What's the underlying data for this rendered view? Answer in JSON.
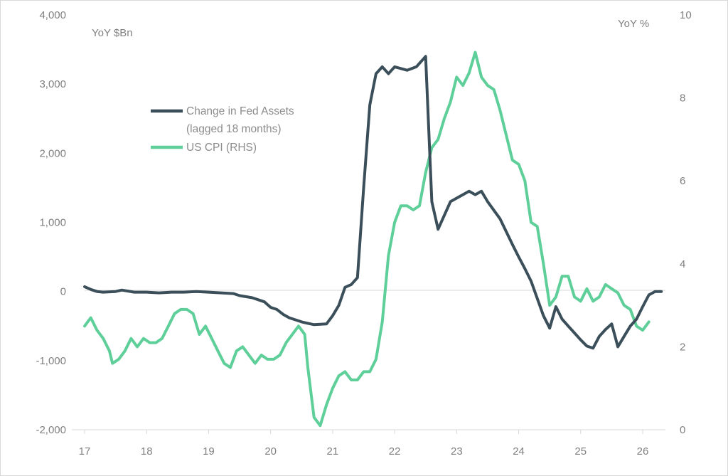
{
  "chart_data": {
    "type": "line",
    "y_left_unit": "YoY $Bn",
    "y_right_unit": "YoY %",
    "x_ticks": [
      "17",
      "18",
      "19",
      "20",
      "21",
      "22",
      "23",
      "24",
      "25",
      "26"
    ],
    "y_left_ticks": [
      "4,000",
      "3,000",
      "2,000",
      "1,000",
      "0",
      "-1,000",
      "-2,000"
    ],
    "y_right_ticks": [
      "10",
      "8",
      "6",
      "4",
      "2",
      "0"
    ],
    "xlim": [
      17,
      26.3
    ],
    "y_left_lim": [
      -2000,
      4000
    ],
    "y_right_lim": [
      0,
      10
    ],
    "grid": false,
    "legend_position": "upper-left",
    "legend": {
      "fed_line1": "Change in Fed Assets",
      "fed_line2": "(lagged 18 months)",
      "cpi": "US CPI (RHS)"
    },
    "colors": {
      "fed": "#3b4f5a",
      "cpi": "#5fcf9a",
      "axis": "#d9d9d9",
      "text": "#808080"
    },
    "series": [
      {
        "name": "Change in Fed Assets (lagged 18 months)",
        "axis": "left",
        "points": [
          [
            17.0,
            70
          ],
          [
            17.1,
            30
          ],
          [
            17.2,
            0
          ],
          [
            17.3,
            -10
          ],
          [
            17.5,
            0
          ],
          [
            17.6,
            20
          ],
          [
            17.8,
            -10
          ],
          [
            18.0,
            -10
          ],
          [
            18.2,
            -20
          ],
          [
            18.4,
            -10
          ],
          [
            18.6,
            -10
          ],
          [
            18.8,
            0
          ],
          [
            19.0,
            -10
          ],
          [
            19.2,
            -20
          ],
          [
            19.4,
            -30
          ],
          [
            19.5,
            -60
          ],
          [
            19.7,
            -90
          ],
          [
            19.9,
            -150
          ],
          [
            20.0,
            -230
          ],
          [
            20.1,
            -260
          ],
          [
            20.2,
            -330
          ],
          [
            20.3,
            -380
          ],
          [
            20.5,
            -440
          ],
          [
            20.6,
            -460
          ],
          [
            20.7,
            -480
          ],
          [
            20.9,
            -470
          ],
          [
            21.0,
            -350
          ],
          [
            21.1,
            -200
          ],
          [
            21.2,
            60
          ],
          [
            21.3,
            100
          ],
          [
            21.4,
            200
          ],
          [
            21.5,
            1500
          ],
          [
            21.6,
            2700
          ],
          [
            21.7,
            3150
          ],
          [
            21.8,
            3250
          ],
          [
            21.9,
            3150
          ],
          [
            22.0,
            3250
          ],
          [
            22.2,
            3200
          ],
          [
            22.35,
            3250
          ],
          [
            22.5,
            3400
          ],
          [
            22.6,
            1300
          ],
          [
            22.7,
            900
          ],
          [
            22.8,
            1100
          ],
          [
            22.9,
            1300
          ],
          [
            23.0,
            1350
          ],
          [
            23.1,
            1400
          ],
          [
            23.2,
            1450
          ],
          [
            23.3,
            1400
          ],
          [
            23.4,
            1450
          ],
          [
            23.5,
            1300
          ],
          [
            23.7,
            1050
          ],
          [
            23.9,
            680
          ],
          [
            24.0,
            500
          ],
          [
            24.1,
            330
          ],
          [
            24.2,
            150
          ],
          [
            24.3,
            -100
          ],
          [
            24.4,
            -350
          ],
          [
            24.5,
            -530
          ],
          [
            24.6,
            -220
          ],
          [
            24.7,
            -400
          ],
          [
            24.8,
            -500
          ],
          [
            24.9,
            -600
          ],
          [
            25.0,
            -700
          ],
          [
            25.1,
            -790
          ],
          [
            25.2,
            -820
          ],
          [
            25.3,
            -650
          ],
          [
            25.4,
            -550
          ],
          [
            25.5,
            -470
          ],
          [
            25.6,
            -800
          ],
          [
            25.7,
            -650
          ],
          [
            25.8,
            -500
          ],
          [
            25.9,
            -400
          ],
          [
            26.0,
            -220
          ],
          [
            26.1,
            -50
          ],
          [
            26.2,
            0
          ],
          [
            26.3,
            0
          ]
        ]
      },
      {
        "name": "US CPI (RHS)",
        "axis": "right",
        "points": [
          [
            17.0,
            2.5
          ],
          [
            17.1,
            2.7
          ],
          [
            17.2,
            2.4
          ],
          [
            17.3,
            2.2
          ],
          [
            17.4,
            1.9
          ],
          [
            17.45,
            1.6
          ],
          [
            17.55,
            1.7
          ],
          [
            17.65,
            1.9
          ],
          [
            17.75,
            2.2
          ],
          [
            17.85,
            2.0
          ],
          [
            17.95,
            2.2
          ],
          [
            18.05,
            2.1
          ],
          [
            18.15,
            2.1
          ],
          [
            18.25,
            2.2
          ],
          [
            18.35,
            2.5
          ],
          [
            18.45,
            2.8
          ],
          [
            18.55,
            2.9
          ],
          [
            18.65,
            2.9
          ],
          [
            18.75,
            2.8
          ],
          [
            18.85,
            2.3
          ],
          [
            18.95,
            2.5
          ],
          [
            19.05,
            2.2
          ],
          [
            19.15,
            1.9
          ],
          [
            19.25,
            1.6
          ],
          [
            19.35,
            1.5
          ],
          [
            19.45,
            1.9
          ],
          [
            19.55,
            2.0
          ],
          [
            19.65,
            1.8
          ],
          [
            19.75,
            1.6
          ],
          [
            19.85,
            1.8
          ],
          [
            19.95,
            1.7
          ],
          [
            20.05,
            1.7
          ],
          [
            20.15,
            1.8
          ],
          [
            20.25,
            2.1
          ],
          [
            20.35,
            2.3
          ],
          [
            20.45,
            2.5
          ],
          [
            20.55,
            2.3
          ],
          [
            20.6,
            1.5
          ],
          [
            20.7,
            0.3
          ],
          [
            20.8,
            0.1
          ],
          [
            20.9,
            0.6
          ],
          [
            21.0,
            1.0
          ],
          [
            21.1,
            1.3
          ],
          [
            21.2,
            1.4
          ],
          [
            21.3,
            1.2
          ],
          [
            21.4,
            1.2
          ],
          [
            21.5,
            1.4
          ],
          [
            21.6,
            1.4
          ],
          [
            21.7,
            1.7
          ],
          [
            21.8,
            2.6
          ],
          [
            21.9,
            4.2
          ],
          [
            22.0,
            5.0
          ],
          [
            22.1,
            5.4
          ],
          [
            22.2,
            5.4
          ],
          [
            22.3,
            5.3
          ],
          [
            22.4,
            5.4
          ],
          [
            22.5,
            6.2
          ],
          [
            22.6,
            6.8
          ],
          [
            22.7,
            7.0
          ],
          [
            22.8,
            7.5
          ],
          [
            22.9,
            7.9
          ],
          [
            23.0,
            8.5
          ],
          [
            23.1,
            8.3
          ],
          [
            23.2,
            8.6
          ],
          [
            23.3,
            9.1
          ],
          [
            23.4,
            8.5
          ],
          [
            23.5,
            8.3
          ],
          [
            23.6,
            8.2
          ],
          [
            23.7,
            7.7
          ],
          [
            23.8,
            7.1
          ],
          [
            23.9,
            6.5
          ],
          [
            24.0,
            6.4
          ],
          [
            24.1,
            6.0
          ],
          [
            24.2,
            5.0
          ],
          [
            24.3,
            4.9
          ],
          [
            24.4,
            4.0
          ],
          [
            24.5,
            3.0
          ],
          [
            24.6,
            3.2
          ],
          [
            24.7,
            3.7
          ],
          [
            24.8,
            3.7
          ],
          [
            24.9,
            3.2
          ],
          [
            25.0,
            3.1
          ],
          [
            25.1,
            3.4
          ],
          [
            25.2,
            3.1
          ],
          [
            25.3,
            3.2
          ],
          [
            25.4,
            3.5
          ],
          [
            25.5,
            3.4
          ],
          [
            25.6,
            3.3
          ],
          [
            25.7,
            3.0
          ],
          [
            25.8,
            2.9
          ],
          [
            25.9,
            2.5
          ],
          [
            26.0,
            2.4
          ],
          [
            26.1,
            2.6
          ]
        ]
      }
    ]
  }
}
